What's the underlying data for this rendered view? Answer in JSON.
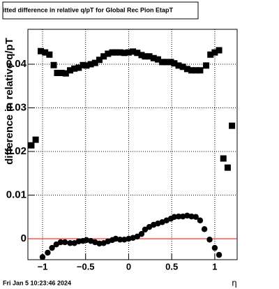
{
  "chart_data": {
    "type": "scatter",
    "title": "itted difference in relative q/pT for Global Rec Pion EtapT",
    "x_label": "η",
    "y_label": "difference in relative q/pT",
    "footer": "Fri Jan  5 10:23:46 2024",
    "xlim": [
      -1.17,
      1.26
    ],
    "ylim": [
      -0.0048,
      0.048
    ],
    "xticks": [
      {
        "value": -1,
        "label": "−1"
      },
      {
        "value": -0.5,
        "label": "−0.5"
      },
      0,
      0.5,
      1
    ],
    "yticks": [
      0,
      0.01,
      0.02,
      0.03,
      0.04
    ],
    "grid": true,
    "reference_line": {
      "value": 0,
      "color": "#ff0000"
    },
    "series": [
      {
        "marker": "square",
        "color": "#000000",
        "x": [
          -1.13,
          -1.08,
          -1.02,
          -0.97,
          -0.92,
          -0.87,
          -0.83,
          -0.78,
          -0.73,
          -0.68,
          -0.63,
          -0.58,
          -0.53,
          -0.49,
          -0.44,
          -0.39,
          -0.34,
          -0.29,
          -0.24,
          -0.19,
          -0.15,
          -0.1,
          -0.05,
          0,
          0.05,
          0.1,
          0.15,
          0.19,
          0.24,
          0.29,
          0.34,
          0.39,
          0.44,
          0.49,
          0.53,
          0.58,
          0.63,
          0.68,
          0.73,
          0.78,
          0.83,
          0.9,
          0.95,
          1.0,
          1.05,
          1.1,
          1.15,
          1.2
        ],
        "values": [
          0.0214,
          0.0227,
          0.043,
          0.0427,
          0.0422,
          0.0398,
          0.038,
          0.038,
          0.0379,
          0.0386,
          0.039,
          0.0392,
          0.0398,
          0.0397,
          0.04,
          0.0403,
          0.041,
          0.0418,
          0.0424,
          0.0427,
          0.0427,
          0.0427,
          0.0426,
          0.0427,
          0.0429,
          0.0426,
          0.0421,
          0.0418,
          0.0418,
          0.0414,
          0.0411,
          0.0405,
          0.0405,
          0.0405,
          0.0402,
          0.0397,
          0.0394,
          0.0389,
          0.0386,
          0.0386,
          0.0386,
          0.0397,
          0.0422,
          0.0427,
          0.0432,
          0.0184,
          0.0163,
          0.0259
        ]
      },
      {
        "marker": "circle",
        "color": "#000000",
        "x": [
          -1.0,
          -0.94,
          -0.89,
          -0.84,
          -0.79,
          -0.74,
          -0.68,
          -0.63,
          -0.58,
          -0.53,
          -0.49,
          -0.44,
          -0.39,
          -0.34,
          -0.29,
          -0.24,
          -0.19,
          -0.15,
          -0.1,
          -0.05,
          0,
          0.05,
          0.1,
          0.15,
          0.19,
          0.24,
          0.29,
          0.34,
          0.39,
          0.44,
          0.49,
          0.53,
          0.58,
          0.63,
          0.68,
          0.73,
          0.78,
          0.83,
          0.88,
          0.94,
          1.0,
          1.05
        ],
        "values": [
          -0.0042,
          -0.0032,
          -0.0021,
          -0.0013,
          -0.0008,
          -0.0008,
          -0.001,
          -0.001,
          -0.0006,
          -0.0005,
          -0.0003,
          -0.0005,
          -0.0008,
          -0.0011,
          -0.001,
          -0.0006,
          -0.0003,
          0,
          -0.0002,
          -0.0002,
          0,
          0.0002,
          0.0005,
          0.0011,
          0.0021,
          0.0027,
          0.0032,
          0.0035,
          0.0038,
          0.0042,
          0.0046,
          0.005,
          0.0051,
          0.0051,
          0.0053,
          0.0051,
          0.005,
          0.0042,
          0.0022,
          -0.0002,
          -0.0021,
          -0.0037
        ]
      }
    ]
  }
}
